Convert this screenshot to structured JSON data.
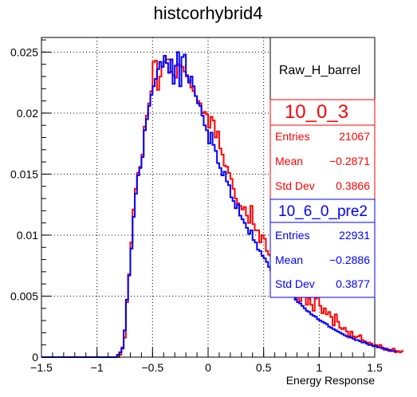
{
  "chart_data": {
    "type": "histogram",
    "title": "histcorhybrid4",
    "xlabel": "Energy Response",
    "ylabel": "",
    "xlim": [
      -1.5,
      1.5
    ],
    "ylim": [
      0,
      0.0262
    ],
    "xticks": [
      "−1.5",
      "−1",
      "−0.5",
      "0",
      "0.5",
      "1",
      "1.5"
    ],
    "yticks": [
      "0",
      "0.005",
      "0.01",
      "0.015",
      "0.02",
      "0.025"
    ],
    "grid": true,
    "label_box": "Raw_H_barrel",
    "bin_start": -1.5,
    "bin_width": 0.02,
    "series": [
      {
        "name": "10_0_3",
        "color": "#ff0000",
        "entries_label": "Entries",
        "entries": "21067",
        "mean_label": "Mean",
        "mean": "−0.2871",
        "std_label": "Std Dev",
        "std": "0.3866",
        "values": [
          0,
          0,
          0,
          0,
          0,
          0,
          0,
          0,
          0,
          0,
          0,
          0,
          0,
          0,
          0,
          0,
          0,
          0,
          0,
          0,
          0,
          0,
          0,
          0,
          0,
          0,
          0,
          0,
          0,
          0,
          0,
          0,
          0,
          0,
          0,
          0.0002,
          0.0008,
          0.0016,
          0.0045,
          0.0068,
          0.0094,
          0.0121,
          0.0138,
          0.0151,
          0.0156,
          0.0166,
          0.0189,
          0.0198,
          0.0208,
          0.0218,
          0.0242,
          0.0243,
          0.0219,
          0.023,
          0.0238,
          0.0242,
          0.0244,
          0.0244,
          0.0234,
          0.0231,
          0.0229,
          0.024,
          0.0239,
          0.0238,
          0.0234,
          0.023,
          0.0227,
          0.0221,
          0.0218,
          0.0214,
          0.021,
          0.0208,
          0.02,
          0.0201,
          0.0199,
          0.0188,
          0.0197,
          0.0194,
          0.018,
          0.0185,
          0.0171,
          0.0166,
          0.0157,
          0.0156,
          0.0151,
          0.0146,
          0.0138,
          0.013,
          0.0126,
          0.0124,
          0.0121,
          0.0123,
          0.0116,
          0.011,
          0.0124,
          0.0109,
          0.0104,
          0.0104,
          0.0094,
          0.01,
          0.0097,
          0.0087,
          0.0084,
          0.0083,
          0.0077,
          0.0082,
          0.0072,
          0.0068,
          0.0073,
          0.0065,
          0.006,
          0.0057,
          0.0063,
          0.0057,
          0.0048,
          0.0053,
          0.0046,
          0.0051,
          0.0051,
          0.0043,
          0.0048,
          0.0043,
          0.0038,
          0.0048,
          0.005,
          0.0042,
          0.0036,
          0.004,
          0.0035,
          0.0037,
          0.0033,
          0.0026,
          0.0035,
          0.0029,
          0.0024,
          0.0023,
          0.0024,
          0.0021,
          0.0016,
          0.0021,
          0.0017,
          0.0016,
          0.0017,
          0.0018,
          0.0014,
          0.0013,
          0.0012,
          0.0012,
          0.0011,
          0.0009,
          0.001,
          0.0009,
          0.001,
          0.0008,
          0.0006,
          0.0007,
          0.0005,
          0.0006,
          0.0007,
          0.0004,
          0.0005,
          0.0004,
          0.0005
        ]
      },
      {
        "name": "10_6_0_pre2",
        "color": "#0000ff",
        "entries_label": "Entries",
        "entries": "22931",
        "mean_label": "Mean",
        "mean": "−0.2886",
        "std_label": "Std Dev",
        "std": "0.3877",
        "values": [
          0,
          0,
          0,
          0,
          0,
          0,
          0,
          0,
          0,
          0,
          0,
          0,
          0,
          0,
          0,
          0,
          0,
          0,
          0,
          0,
          0,
          0,
          0,
          0,
          0,
          0,
          0,
          0,
          0,
          0,
          0,
          0,
          0,
          0,
          0.0002,
          0.0004,
          0.0007,
          0.0022,
          0.0047,
          0.0067,
          0.0089,
          0.0115,
          0.0134,
          0.0149,
          0.0155,
          0.0164,
          0.0186,
          0.0195,
          0.0206,
          0.0215,
          0.0222,
          0.0228,
          0.0236,
          0.0242,
          0.0238,
          0.0247,
          0.0241,
          0.0233,
          0.0244,
          0.0224,
          0.0239,
          0.025,
          0.0222,
          0.0246,
          0.0248,
          0.0231,
          0.0225,
          0.023,
          0.0222,
          0.0214,
          0.0208,
          0.0206,
          0.0198,
          0.019,
          0.0186,
          0.0175,
          0.0184,
          0.0174,
          0.0169,
          0.0159,
          0.0155,
          0.0149,
          0.0152,
          0.0144,
          0.0141,
          0.0131,
          0.0128,
          0.0122,
          0.0125,
          0.0116,
          0.0113,
          0.011,
          0.0106,
          0.0101,
          0.0104,
          0.0096,
          0.0094,
          0.0088,
          0.0087,
          0.0083,
          0.0081,
          0.0078,
          0.0074,
          0.0071,
          0.007,
          0.0068,
          0.0064,
          0.0061,
          0.006,
          0.0058,
          0.0055,
          0.0053,
          0.0052,
          0.005,
          0.0047,
          0.0045,
          0.0044,
          0.0042,
          0.004,
          0.0038,
          0.0037,
          0.0035,
          0.0034,
          0.0033,
          0.0031,
          0.003,
          0.0029,
          0.0028,
          0.0027,
          0.0025,
          0.0024,
          0.0023,
          0.0022,
          0.0021,
          0.002,
          0.0019,
          0.0018,
          0.0017,
          0.0017,
          0.0016,
          0.0015,
          0.0014,
          0.0014,
          0.0013,
          0.0012,
          0.0012,
          0.0011,
          0.001,
          0.001,
          0.0009,
          0.0009,
          0.0008,
          0.0008,
          0.0007,
          0.0007,
          0.0006,
          0.0006,
          0.0005,
          0.0005,
          0.0005
        ]
      }
    ]
  }
}
